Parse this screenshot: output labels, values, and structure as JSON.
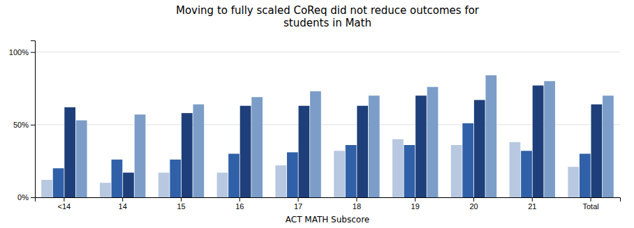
{
  "chart_data": {
    "type": "bar",
    "title": "Moving to fully scaled CoReq did not reduce outcomes for\nstudents in Math",
    "xlabel": "ACT MATH Subscore",
    "categories": [
      "<14",
      "14",
      "15",
      "16",
      "17",
      "18",
      "19",
      "20",
      "21",
      "Total"
    ],
    "series": [
      {
        "color": "#b8c8e0",
        "values": [
          0.12,
          0.1,
          0.17,
          0.17,
          0.22,
          0.32,
          0.4,
          0.36,
          0.38,
          0.21
        ]
      },
      {
        "color": "#3060a8",
        "values": [
          0.2,
          0.26,
          0.26,
          0.3,
          0.31,
          0.36,
          0.36,
          0.51,
          0.32,
          0.3
        ]
      },
      {
        "color": "#1e3f7a",
        "values": [
          0.62,
          0.17,
          0.58,
          0.63,
          0.63,
          0.63,
          0.7,
          0.67,
          0.77,
          0.64
        ]
      },
      {
        "color": "#7b9dc8",
        "values": [
          0.53,
          0.57,
          0.64,
          0.69,
          0.73,
          0.7,
          0.76,
          0.84,
          0.8,
          0.7
        ]
      }
    ],
    "ylim": [
      0,
      1.08
    ],
    "yticks": [
      {
        "value": 0,
        "label": "0%"
      },
      {
        "value": 0.5,
        "label": "50%"
      },
      {
        "value": 1.0,
        "label": "100%"
      }
    ],
    "grid": true
  }
}
